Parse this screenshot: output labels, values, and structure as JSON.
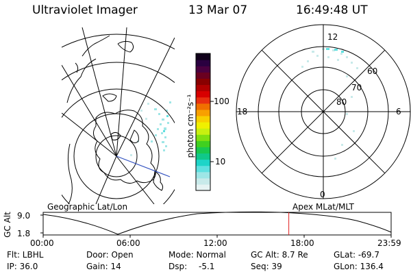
{
  "header": {
    "instrument": "Ultraviolet Imager",
    "date": "13 Mar 07",
    "time": "16:49:48 UT"
  },
  "left_panel": {
    "label": "Geographic Lat/Lon"
  },
  "right_panel": {
    "label": "Apex MLat/MLT",
    "mlt_labels": [
      "12",
      "6",
      "0",
      "18"
    ],
    "mlat_labels": [
      "60",
      "70",
      "80"
    ]
  },
  "colorbar": {
    "unit_label": "photon cm⁻²s⁻¹",
    "ticks": [
      "100",
      "10"
    ],
    "colors": [
      "#e6f3f3",
      "#c8eaea",
      "#9ee6e6",
      "#5fe0e0",
      "#1ed4c8",
      "#10c88a",
      "#18c850",
      "#40d020",
      "#80e010",
      "#c8f010",
      "#f0f000",
      "#f8d000",
      "#f8a000",
      "#f07000",
      "#e83010",
      "#d80000",
      "#b00000",
      "#880000",
      "#6a0020",
      "#4a0040",
      "#2a0040",
      "#10001a"
    ]
  },
  "orbit": {
    "y_label": "GC Alt",
    "y_ticks": [
      "9.0",
      "1.8"
    ],
    "x_ticks": [
      "00:00",
      "06:00",
      "12:00",
      "18:00",
      "23:59"
    ],
    "current_time_fraction": 0.706,
    "marker_color": "#e02020"
  },
  "status": {
    "flt": "Flt: LBHL",
    "ip": "IP: 36.0",
    "door": "Door: Open",
    "gain": "Gain: 14",
    "mode": "Mode: Normal",
    "dsp_label": "Dsp:",
    "dsp_value": "-5.1",
    "gc_alt": "GC Alt: 8.7 Re",
    "seq": "Seq: 39",
    "glat": "GLat: -69.7",
    "glon": "GLon: 136.4"
  }
}
